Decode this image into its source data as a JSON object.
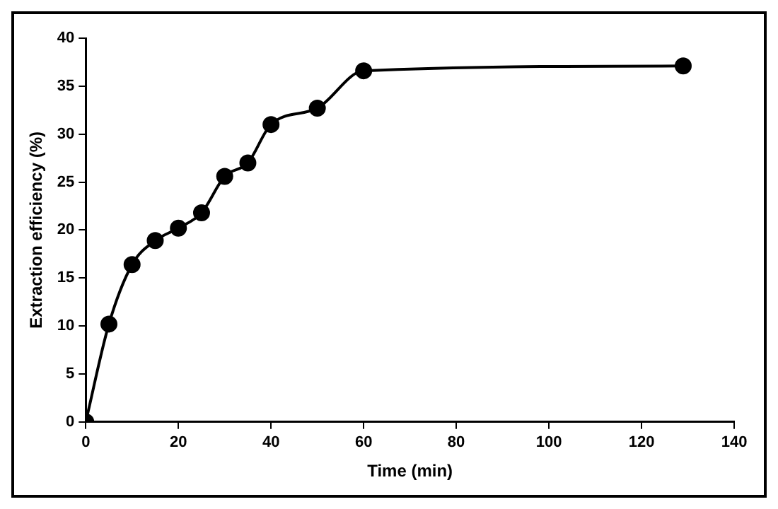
{
  "chart_data": {
    "type": "line",
    "xlabel": "Time (min)",
    "ylabel": "Extraction efficiency (%)",
    "x": [
      0,
      5,
      10,
      15,
      20,
      25,
      30,
      35,
      40,
      50,
      60,
      129
    ],
    "series": [
      {
        "color": "#000000",
        "values": [
          0,
          10.2,
          16.4,
          18.9,
          20.2,
          21.8,
          25.6,
          27,
          31,
          32.7,
          36.6,
          37.1
        ]
      }
    ],
    "xlim": [
      0,
      140
    ],
    "xticks": [
      0,
      20,
      40,
      60,
      80,
      100,
      120,
      140
    ],
    "ylim": [
      0,
      40
    ],
    "yticks": [
      0,
      5,
      10,
      15,
      20,
      25,
      30,
      35,
      40
    ],
    "grid": false,
    "legend": false,
    "marker": "circle",
    "line_style": "solid"
  }
}
